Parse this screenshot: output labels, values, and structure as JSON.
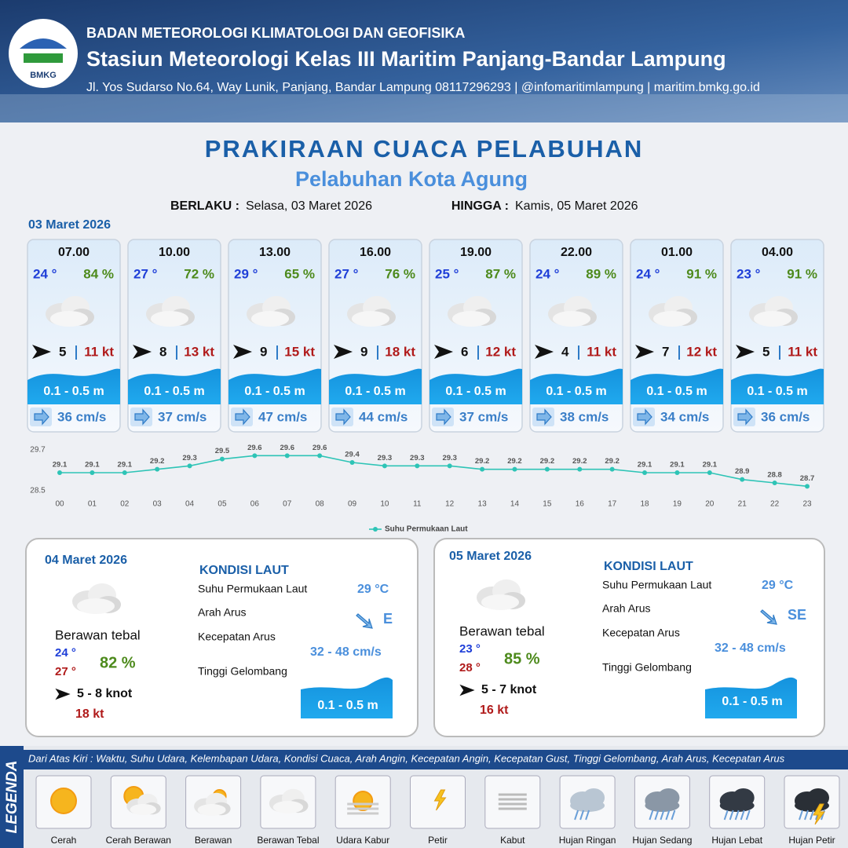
{
  "header": {
    "agency": "BADAN METEOROLOGI KLIMATOLOGI DAN GEOFISIKA",
    "station": "Stasiun Meteorologi Kelas III Maritim Panjang-Bandar Lampung",
    "contact": "Jl. Yos Sudarso No.64, Way Lunik, Panjang, Bandar Lampung 08117296293 | @infomaritimlampung | maritim.bmkg.go.id",
    "logo": "BMKG"
  },
  "title": "PRAKIRAAN CUACA PELABUHAN",
  "subtitle": "Pelabuhan Kota Agung",
  "validity": {
    "from_label": "BERLAKU :",
    "from": "Selasa, 03 Maret 2026",
    "to_label": "HINGGA :",
    "to": "Kamis, 05 Maret 2026"
  },
  "today": {
    "date": "03 Maret 2026",
    "slots": [
      {
        "time": "07.00",
        "temp": "24 °",
        "humidity": "84 %",
        "wind": "5",
        "gust": "11 kt",
        "wave": "0.1 - 0.5 m",
        "current": "36 cm/s"
      },
      {
        "time": "10.00",
        "temp": "27 °",
        "humidity": "72 %",
        "wind": "8",
        "gust": "13 kt",
        "wave": "0.1 - 0.5 m",
        "current": "37 cm/s"
      },
      {
        "time": "13.00",
        "temp": "29 °",
        "humidity": "65 %",
        "wind": "9",
        "gust": "15 kt",
        "wave": "0.1 - 0.5 m",
        "current": "47 cm/s"
      },
      {
        "time": "16.00",
        "temp": "27 °",
        "humidity": "76 %",
        "wind": "9",
        "gust": "18 kt",
        "wave": "0.1 - 0.5 m",
        "current": "44 cm/s"
      },
      {
        "time": "19.00",
        "temp": "25 °",
        "humidity": "87 %",
        "wind": "6",
        "gust": "12 kt",
        "wave": "0.1 - 0.5 m",
        "current": "37 cm/s"
      },
      {
        "time": "22.00",
        "temp": "24 °",
        "humidity": "89 %",
        "wind": "4",
        "gust": "11 kt",
        "wave": "0.1 - 0.5 m",
        "current": "38 cm/s"
      },
      {
        "time": "01.00",
        "temp": "24 °",
        "humidity": "91 %",
        "wind": "7",
        "gust": "12 kt",
        "wave": "0.1 - 0.5 m",
        "current": "34 cm/s"
      },
      {
        "time": "04.00",
        "temp": "23 °",
        "humidity": "91 %",
        "wind": "5",
        "gust": "11 kt",
        "wave": "0.1 - 0.5 m",
        "current": "36 cm/s"
      }
    ]
  },
  "chart_data": {
    "type": "line",
    "categories": [
      "00",
      "01",
      "02",
      "03",
      "04",
      "05",
      "06",
      "07",
      "08",
      "09",
      "10",
      "11",
      "12",
      "13",
      "14",
      "15",
      "16",
      "17",
      "18",
      "19",
      "20",
      "21",
      "22",
      "23"
    ],
    "series": [
      {
        "name": "Suhu Permukaan Laut",
        "color": "#2ec4b6",
        "values": [
          29.1,
          29.1,
          29.1,
          29.2,
          29.3,
          29.5,
          29.6,
          29.6,
          29.6,
          29.4,
          29.3,
          29.3,
          29.3,
          29.2,
          29.2,
          29.2,
          29.2,
          29.2,
          29.1,
          29.1,
          29.1,
          28.9,
          28.8,
          28.7
        ]
      }
    ],
    "ylim": [
      28.5,
      29.7
    ],
    "yticks": [
      28.5,
      29.7
    ],
    "legend": "bottom"
  },
  "forecast": [
    {
      "date": "04 Maret 2026",
      "condition": "Berawan tebal",
      "temp_min": "24 °",
      "temp_max": "27 °",
      "humidity": "82 %",
      "wind": "5 - 8 knot",
      "gust": "18 kt",
      "sea": {
        "heading": "KONDISI LAUT",
        "rows": [
          {
            "label": "Suhu Permukaan Laut",
            "value": "29 °C"
          },
          {
            "label": "Arah Arus",
            "value": "E"
          },
          {
            "label": "Kecepatan Arus",
            "value": "32 - 48 cm/s"
          },
          {
            "label": "Tinggi Gelombang",
            "value": "0.1 - 0.5 m"
          }
        ]
      }
    },
    {
      "date": "05 Maret 2026",
      "condition": "Berawan tebal",
      "temp_min": "23 °",
      "temp_max": "28 °",
      "humidity": "85 %",
      "wind": "5 - 7 knot",
      "gust": "16 kt",
      "sea": {
        "heading": "KONDISI LAUT",
        "rows": [
          {
            "label": "Suhu Permukaan Laut",
            "value": "29 °C"
          },
          {
            "label": "Arah Arus",
            "value": "SE"
          },
          {
            "label": "Kecepatan Arus",
            "value": "32 - 48 cm/s"
          },
          {
            "label": "Tinggi Gelombang",
            "value": "0.1 - 0.5 m"
          }
        ]
      }
    }
  ],
  "legend": {
    "title": "LEGENDA",
    "description": "Dari Atas Kiri : Waktu, Suhu Udara, Kelembapan Udara, Kondisi Cuaca, Arah Angin, Kecepatan Angin, Kecepatan Gust, Tinggi Gelombang, Arah Arus, Kecepatan Arus",
    "items": [
      "Cerah",
      "Cerah Berawan",
      "Berawan",
      "Berawan Tebal",
      "Udara Kabur",
      "Petir",
      "Kabut",
      "Hujan Ringan",
      "Hujan Sedang",
      "Hujan Lebat",
      "Hujan Petir"
    ]
  }
}
